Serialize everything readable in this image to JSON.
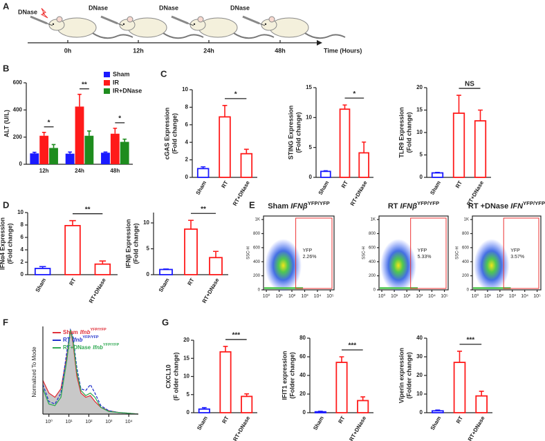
{
  "timeline": {
    "panel": "A",
    "events": [
      {
        "label": "DNase",
        "time": "0h"
      },
      {
        "label": "DNase",
        "time": "12h"
      },
      {
        "label": "DNase",
        "time": "24h"
      },
      {
        "label": "DNase",
        "time": "48h"
      }
    ],
    "axis_label": "Time (Hours)"
  },
  "chart_data": [
    {
      "panel": "B",
      "type": "bar",
      "filled": true,
      "ylabel": "ALT (U/L)",
      "categories": [
        "12h",
        "24h",
        "48h"
      ],
      "series": [
        {
          "name": "Sham",
          "color": "#1a1aff",
          "values": [
            80,
            78,
            85
          ],
          "errors": [
            8,
            12,
            5
          ]
        },
        {
          "name": "IR",
          "color": "#ff1a1a",
          "values": [
            210,
            425,
            225
          ],
          "errors": [
            25,
            90,
            40
          ]
        },
        {
          "name": "IR+DNase",
          "color": "#1e8c1e",
          "values": [
            120,
            210,
            165
          ],
          "errors": [
            25,
            35,
            20
          ]
        }
      ],
      "ylim": [
        0,
        600
      ],
      "yticks": [
        0,
        200,
        400,
        600
      ],
      "significance": [
        "*",
        "**",
        "*"
      ],
      "legend": "top-right"
    },
    {
      "panel": "C",
      "type": "bar",
      "filled": false,
      "ylabel": [
        "cGAS Expression",
        "(Fold change)"
      ],
      "categories": [
        "Sham",
        "RT",
        "RT+DNase"
      ],
      "values": [
        1.0,
        6.9,
        2.7
      ],
      "errors": [
        0.2,
        1.3,
        0.5
      ],
      "colors": [
        "#1a1aff",
        "#ff1a1a",
        "#ff1a1a"
      ],
      "ylim": [
        0,
        10
      ],
      "yticks": [
        0,
        2,
        4,
        6,
        8,
        10
      ],
      "significance": "*"
    },
    {
      "type": "bar",
      "filled": false,
      "ylabel": [
        "STING Expression",
        "(Fold change)"
      ],
      "categories": [
        "Sham",
        "RT",
        "RT+DNase"
      ],
      "values": [
        1.0,
        11.4,
        4.1
      ],
      "errors": [
        0.1,
        0.7,
        1.8
      ],
      "colors": [
        "#1a1aff",
        "#ff1a1a",
        "#ff1a1a"
      ],
      "ylim": [
        0,
        15
      ],
      "yticks": [
        0,
        5,
        10,
        15
      ],
      "significance": "*"
    },
    {
      "type": "bar",
      "filled": false,
      "ylabel": [
        "TLR9 Expression",
        "(Fold change)"
      ],
      "categories": [
        "Sham",
        "RT",
        "RT+DNase"
      ],
      "values": [
        1.0,
        14.3,
        12.6
      ],
      "errors": [
        0.1,
        4.0,
        2.4
      ],
      "colors": [
        "#1a1aff",
        "#ff1a1a",
        "#ff1a1a"
      ],
      "ylim": [
        0,
        20
      ],
      "yticks": [
        0,
        5,
        10,
        15,
        20
      ],
      "significance": "NS"
    },
    {
      "panel": "D",
      "type": "bar",
      "filled": false,
      "ylabel": [
        "IFNα4 Expression",
        "(Fold change)"
      ],
      "categories": [
        "Sham",
        "RT",
        "RT+DNase"
      ],
      "values": [
        1.0,
        7.9,
        1.7
      ],
      "errors": [
        0.3,
        0.8,
        0.5
      ],
      "colors": [
        "#1a1aff",
        "#ff1a1a",
        "#ff1a1a"
      ],
      "ylim": [
        0,
        10
      ],
      "yticks": [
        0,
        2,
        4,
        6,
        8,
        10
      ],
      "significance": "**"
    },
    {
      "type": "bar",
      "filled": false,
      "ylabel": [
        "IFNβ Expression",
        "(Fold change)"
      ],
      "categories": [
        "Sham",
        "RT",
        "RT+DNase"
      ],
      "values": [
        1.0,
        8.8,
        3.3
      ],
      "errors": [
        0.1,
        1.7,
        1.2
      ],
      "colors": [
        "#1a1aff",
        "#ff1a1a",
        "#ff1a1a"
      ],
      "ylim": [
        0,
        12
      ],
      "yticks": [
        0,
        5,
        10
      ],
      "significance": "**"
    },
    {
      "panel": "E",
      "type": "scatter",
      "title": {
        "prefix": "Sham",
        "gene": "IFNβ",
        "superscript": "YFP/YFP"
      },
      "ylabel": "SSC-H",
      "log_x": true,
      "xlim": [
        0.6,
        200000
      ],
      "xticks": [
        {
          "value": 1,
          "label": "10⁰"
        },
        {
          "value": 10,
          "label": "10¹"
        },
        {
          "value": 100,
          "label": "10²"
        },
        {
          "value": 1000,
          "label": "10³"
        },
        {
          "value": 10000,
          "label": "10⁴"
        },
        {
          "value": 100000,
          "label": "10⁵"
        }
      ],
      "ylim": [
        0,
        1050
      ],
      "yticks": [
        0,
        200,
        400,
        600,
        800,
        {
          "value": 1000,
          "label": "1K"
        }
      ],
      "gate_label": "YFP",
      "gate_percent": "2.26%"
    },
    {
      "type": "scatter",
      "title": {
        "prefix": "RT",
        "gene": "IFNβ",
        "superscript": "YFP/YFP"
      },
      "ylabel": "SSC-H",
      "log_x": true,
      "xlim": [
        0.6,
        200000
      ],
      "xticks": [
        {
          "value": 1,
          "label": "10⁰"
        },
        {
          "value": 10,
          "label": "10¹"
        },
        {
          "value": 100,
          "label": "10²"
        },
        {
          "value": 1000,
          "label": "10³"
        },
        {
          "value": 10000,
          "label": "10⁴"
        },
        {
          "value": 100000,
          "label": "10⁵"
        }
      ],
      "ylim": [
        0,
        1050
      ],
      "yticks": [
        0,
        200,
        400,
        600,
        800,
        {
          "value": 1000,
          "label": "1K"
        }
      ],
      "gate_label": "YFP",
      "gate_percent": "5.33%"
    },
    {
      "type": "scatter",
      "title": {
        "prefix": "RT +DNase",
        "gene": "IFN",
        "superscript": "YFP/YFP"
      },
      "ylabel": "SSC-H",
      "log_x": true,
      "xlim": [
        0.6,
        200000
      ],
      "xticks": [
        {
          "value": 1,
          "label": "10⁰"
        },
        {
          "value": 10,
          "label": "10¹"
        },
        {
          "value": 100,
          "label": "10²"
        },
        {
          "value": 1000,
          "label": "10³"
        },
        {
          "value": 10000,
          "label": "10⁴"
        },
        {
          "value": 100000,
          "label": "10⁵"
        }
      ],
      "ylim": [
        0,
        1050
      ],
      "yticks": [
        0,
        200,
        400,
        600,
        800,
        {
          "value": 1000,
          "label": "1K"
        }
      ],
      "gate_label": "YFP",
      "gate_percent": "3.57%"
    },
    {
      "panel": "F",
      "type": "line",
      "ylabel": "Normalized To Mode",
      "log_x": true,
      "x": [
        0.5,
        1,
        2,
        4,
        8,
        12,
        16,
        25,
        40,
        70,
        120,
        200,
        400,
        1000,
        3000,
        10000,
        30000
      ],
      "xlim": [
        0.5,
        30000
      ],
      "xticks": [
        {
          "value": 1,
          "label": "10⁰"
        },
        {
          "value": 10,
          "label": "10¹"
        },
        {
          "value": 100,
          "label": "10²"
        },
        {
          "value": 1000,
          "label": "10³"
        },
        {
          "value": 10000,
          "label": "10⁴"
        }
      ],
      "ylim": [
        0,
        100
      ],
      "series": [
        {
          "name": "Sham",
          "gene": "Ifnb",
          "superscript": "YFP/YFP",
          "color": "#e0303a",
          "fill": "#c8c8c8",
          "values": [
            40,
            25,
            20,
            30,
            70,
            100,
            85,
            45,
            25,
            20,
            22,
            15,
            8,
            4,
            2,
            1,
            0
          ]
        },
        {
          "name": "RT",
          "gene": "Ifnb",
          "superscript": "YFP/YFP",
          "color": "#2233cc",
          "values": [
            35,
            15,
            12,
            25,
            75,
            100,
            92,
            55,
            30,
            28,
            35,
            25,
            10,
            4,
            2,
            1,
            0
          ]
        },
        {
          "name": "RT+DNase",
          "gene": "Ifnb",
          "superscript": "YFP/YFP",
          "color": "#33aa55",
          "values": [
            30,
            12,
            10,
            20,
            65,
            100,
            88,
            50,
            28,
            22,
            25,
            20,
            8,
            3,
            2,
            1,
            0
          ]
        }
      ]
    },
    {
      "panel": "G",
      "type": "bar",
      "filled": false,
      "ylabel": [
        "CXCL10",
        "(F older change)"
      ],
      "categories": [
        "Sham",
        "RT",
        "RT+DNase"
      ],
      "values": [
        1.0,
        16.8,
        4.5
      ],
      "errors": [
        0.4,
        1.5,
        0.7
      ],
      "colors": [
        "#1a1aff",
        "#ff1a1a",
        "#ff1a1a"
      ],
      "ylim": [
        0,
        20
      ],
      "yticks": [
        0,
        5,
        10,
        15,
        20
      ],
      "significance": "***"
    },
    {
      "type": "bar",
      "filled": false,
      "ylabel": [
        "IFIT1 expression",
        "(Folder change)"
      ],
      "categories": [
        "Sham",
        "RT",
        "RT+DNase"
      ],
      "values": [
        1,
        54,
        13
      ],
      "errors": [
        0.5,
        6,
        4
      ],
      "colors": [
        "#1a1aff",
        "#ff1a1a",
        "#ff1a1a"
      ],
      "ylim": [
        0,
        80
      ],
      "yticks": [
        0,
        20,
        40,
        60,
        80
      ],
      "significance": "***"
    },
    {
      "type": "bar",
      "filled": false,
      "ylabel": [
        "Viperin expression",
        "(Folder change)"
      ],
      "categories": [
        "Sham",
        "RT",
        "RT+DNase"
      ],
      "values": [
        1,
        27,
        9
      ],
      "errors": [
        0.4,
        6,
        2.5
      ],
      "colors": [
        "#1a1aff",
        "#ff1a1a",
        "#ff1a1a"
      ],
      "ylim": [
        0,
        40
      ],
      "yticks": [
        0,
        10,
        20,
        30,
        40
      ],
      "significance": "***"
    }
  ]
}
